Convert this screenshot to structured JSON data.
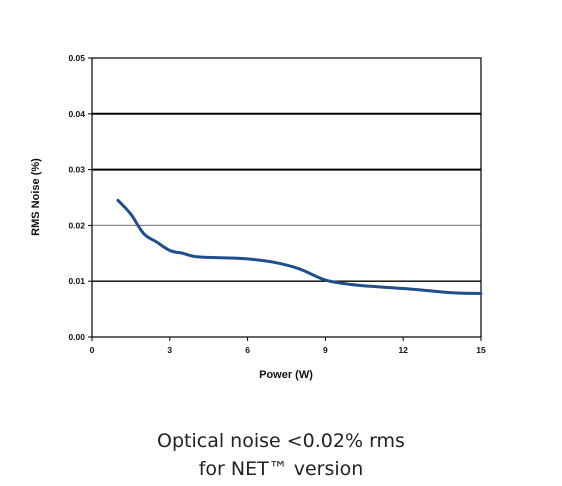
{
  "chart_data": {
    "type": "line",
    "title": "",
    "xlabel": "Power (W)",
    "ylabel": "RMS Noise (%)",
    "xlim": [
      0,
      15
    ],
    "ylim": [
      0,
      0.05
    ],
    "x_ticks": [
      0,
      3,
      6,
      9,
      12,
      15
    ],
    "x_tick_labels": [
      "0",
      "3",
      "6",
      "9",
      "12",
      "15"
    ],
    "y_ticks": [
      0,
      0.01,
      0.02,
      0.03,
      0.04,
      0.05
    ],
    "y_tick_labels": [
      "0.00",
      "0.01",
      "0.02",
      "0.03",
      "0.04",
      "0.05"
    ],
    "grid": true,
    "colors": {
      "line": "#1f4e8c",
      "grid_dark": "#000000",
      "grid_gray": "#8a8a8a"
    },
    "series": [
      {
        "x": [
          1,
          1.5,
          2,
          2.5,
          3,
          3.5,
          4,
          5,
          6,
          7,
          8,
          9,
          10,
          11,
          12,
          13,
          14,
          15
        ],
        "y": [
          0.0245,
          0.022,
          0.0185,
          0.017,
          0.0155,
          0.015,
          0.0144,
          0.0142,
          0.014,
          0.0134,
          0.0122,
          0.0102,
          0.0094,
          0.009,
          0.0087,
          0.0083,
          0.0079,
          0.0078
        ]
      }
    ]
  },
  "caption": {
    "line1": "Optical noise <0.02% rms",
    "line2": "for NET™ version"
  }
}
